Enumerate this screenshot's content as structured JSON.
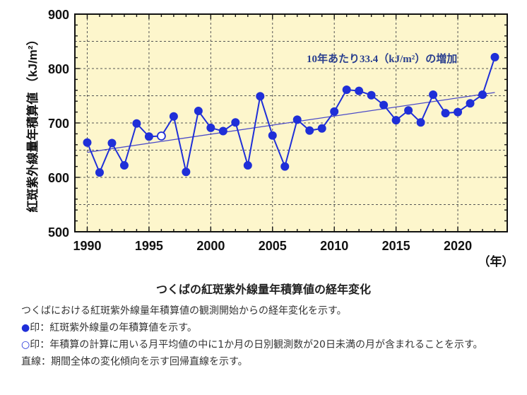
{
  "chart_data": {
    "type": "line",
    "ylabel": "紅斑紫外線量年積算値 （kJ/m²）",
    "xunit": "（年）",
    "xlim": [
      1989,
      2024
    ],
    "ylim": [
      500,
      900
    ],
    "xticks": [
      1990,
      1995,
      2000,
      2005,
      2010,
      2015,
      2020
    ],
    "yticks": [
      500,
      600,
      700,
      800,
      900
    ],
    "grid": true,
    "annotation": "10年あたり33.4（kJ/m²）の増加",
    "colors": {
      "series": "#1f2fd8",
      "trend": "#4a4ac8",
      "background": "#fdf6cc",
      "annotation": "#2a3f8f"
    },
    "series": [
      {
        "x": [
          1990,
          1991,
          1992,
          1993,
          1994,
          1995,
          1996,
          1997,
          1998,
          1999,
          2000,
          2001,
          2002,
          2003,
          2004,
          2005,
          2006,
          2007,
          2008,
          2009,
          2010,
          2011,
          2012,
          2013,
          2014,
          2015,
          2016,
          2017,
          2018,
          2019,
          2020,
          2021,
          2022,
          2023
        ],
        "y": [
          664,
          609,
          663,
          622,
          699,
          675,
          676,
          712,
          610,
          722,
          691,
          685,
          701,
          622,
          749,
          677,
          620,
          706,
          686,
          690,
          721,
          761,
          759,
          751,
          733,
          705,
          723,
          701,
          752,
          718,
          720,
          736,
          752,
          821
        ],
        "open_markers": [
          1996
        ]
      }
    ],
    "trend": {
      "x": [
        1990,
        2023
      ],
      "y": [
        646,
        756
      ]
    }
  },
  "caption": {
    "title": "つくばの紅斑紫外線量年積算値の経年変化",
    "line1": "つくばにおける紅斑紫外線量年積算値の観測開始からの経年変化を示す。",
    "line2_mark": "●",
    "line2_text": "印：紅斑紫外線量の年積算値を示す。",
    "line3_mark": "○",
    "line3_text": "印：年積算の計算に用いる月平均値の中に1か月の日別観測数が20日未満の月が含まれることを示す。",
    "line4": "直線：期間全体の変化傾向を示す回帰直線を示す。"
  }
}
